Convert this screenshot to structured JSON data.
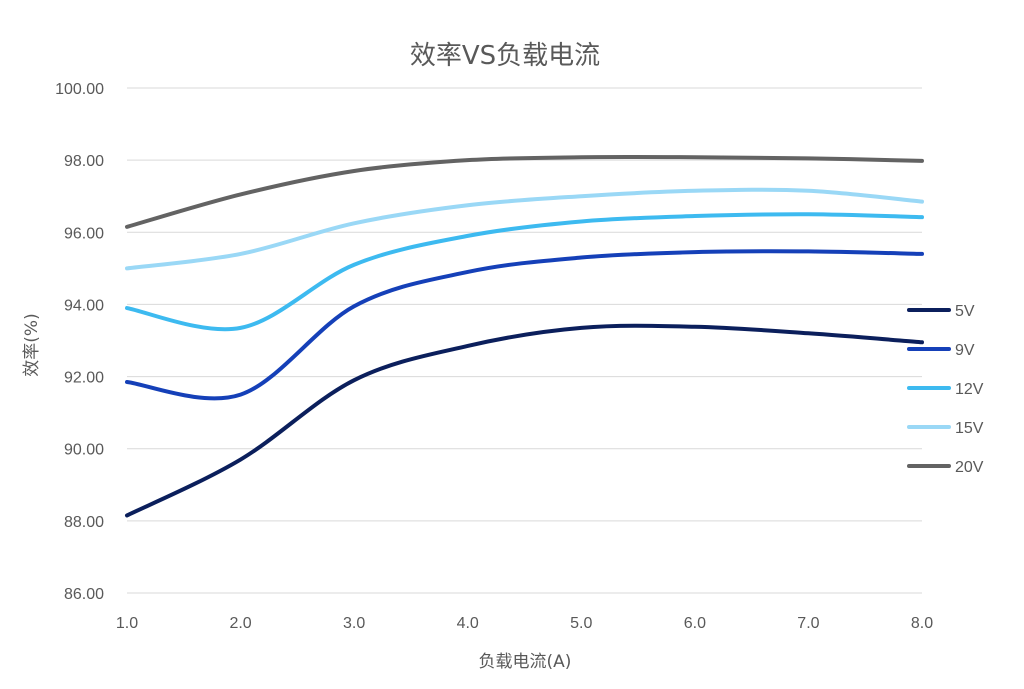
{
  "chart_data": {
    "type": "line",
    "title": "效率VS负载电流",
    "xlabel": "负载电流(A)",
    "ylabel": "效率(%)",
    "xlim": [
      1.0,
      8.0
    ],
    "ylim": [
      86.0,
      100.0
    ],
    "x_ticks": [
      "1.0",
      "2.0",
      "3.0",
      "4.0",
      "5.0",
      "6.0",
      "7.0",
      "8.0"
    ],
    "y_ticks": [
      "86.00",
      "88.00",
      "90.00",
      "92.00",
      "94.00",
      "96.00",
      "98.00",
      "100.00"
    ],
    "grid": true,
    "legend_position": "right",
    "x": [
      1.0,
      2.0,
      3.0,
      4.0,
      5.0,
      6.0,
      7.0,
      8.0
    ],
    "series": [
      {
        "name": "5V",
        "color": "#0b1f5c",
        "values": [
          88.15,
          89.7,
          91.9,
          92.85,
          93.35,
          93.38,
          93.2,
          92.95
        ]
      },
      {
        "name": "9V",
        "color": "#1540b8",
        "values": [
          91.85,
          91.5,
          93.95,
          94.9,
          95.3,
          95.45,
          95.47,
          95.4
        ]
      },
      {
        "name": "12V",
        "color": "#3dbaf0",
        "values": [
          93.9,
          93.35,
          95.1,
          95.9,
          96.3,
          96.45,
          96.5,
          96.42
        ]
      },
      {
        "name": "15V",
        "color": "#9ad8f6",
        "values": [
          95.0,
          95.4,
          96.25,
          96.75,
          97.0,
          97.15,
          97.15,
          96.85
        ]
      },
      {
        "name": "20V",
        "color": "#636363",
        "values": [
          96.15,
          97.05,
          97.7,
          98.0,
          98.08,
          98.08,
          98.05,
          97.98
        ]
      }
    ]
  }
}
